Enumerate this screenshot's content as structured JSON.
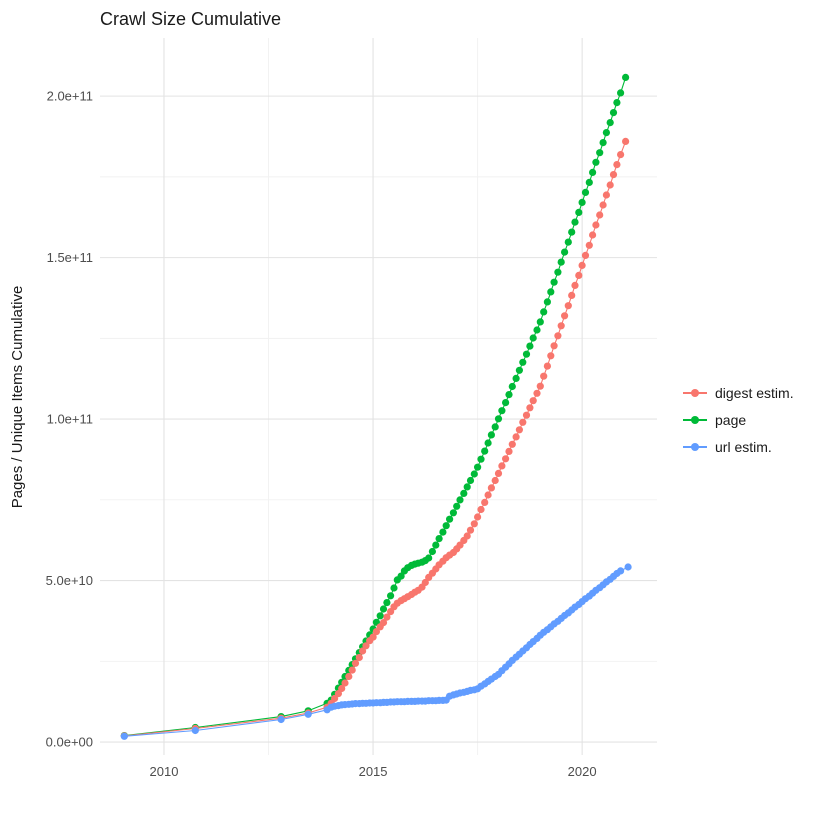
{
  "title": "Crawl Size Cumulative",
  "y_axis_title": "Pages / Unique Items Cumulative",
  "legend": {
    "items": [
      {
        "label": "digest estim.",
        "series": "digest"
      },
      {
        "label": "page",
        "series": "page"
      },
      {
        "label": "url estim.",
        "series": "url"
      }
    ]
  },
  "colors": {
    "digest": "#F8766D",
    "page": "#00BA38",
    "url": "#619CFF",
    "grid_major": "#e3e3e3",
    "grid_minor": "#f1f1f1",
    "tick_text": "#4d4d4d",
    "title_text": "#1a1a1a"
  },
  "chart_data": {
    "type": "scatter",
    "title": "Crawl Size Cumulative",
    "xlabel": "",
    "ylabel": "Pages / Unique Items Cumulative",
    "value_unit": "1e9",
    "xlim": [
      2008.47,
      2021.79
    ],
    "ylim_e9": [
      -4.0,
      218.0
    ],
    "grid": true,
    "legend_position": "right",
    "x_major_ticks": [
      {
        "value": 2010,
        "label": "2010"
      },
      {
        "value": 2015,
        "label": "2015"
      },
      {
        "value": 2020,
        "label": "2020"
      }
    ],
    "x_minor_ticks": [
      2012.5,
      2017.5
    ],
    "y_major_ticks": [
      {
        "value": 0,
        "label": "0.0e+00"
      },
      {
        "value": 50,
        "label": "5.0e+10"
      },
      {
        "value": 100,
        "label": "1.0e+11"
      },
      {
        "value": 150,
        "label": "1.5e+11"
      },
      {
        "value": 200,
        "label": "2.0e+11"
      }
    ],
    "y_minor_ticks": [
      25,
      75,
      125,
      175
    ],
    "draw_order": [
      "page",
      "digest",
      "url"
    ],
    "series": [
      {
        "id": "digest",
        "name": "digest estim.",
        "color": "#F8766D",
        "points": [
          [
            2009.05,
            1.9
          ],
          [
            2010.75,
            4.2
          ],
          [
            2012.8,
            7.4
          ],
          [
            2013.45,
            9.0
          ],
          [
            2013.9,
            10.8
          ],
          [
            2014.0,
            12.0
          ],
          [
            2014.08,
            13.5
          ],
          [
            2014.17,
            15.0
          ],
          [
            2014.25,
            16.6
          ],
          [
            2014.33,
            18.3
          ],
          [
            2014.42,
            20.3
          ],
          [
            2014.5,
            22.3
          ],
          [
            2014.58,
            24.4
          ],
          [
            2014.67,
            26.2
          ],
          [
            2014.75,
            28.2
          ],
          [
            2014.83,
            29.8
          ],
          [
            2014.92,
            31.4
          ],
          [
            2015.0,
            32.5
          ],
          [
            2015.08,
            34.2
          ],
          [
            2015.17,
            35.7
          ],
          [
            2015.25,
            37.0
          ],
          [
            2015.33,
            38.7
          ],
          [
            2015.42,
            40.4
          ],
          [
            2015.5,
            41.9
          ],
          [
            2015.58,
            43.0
          ],
          [
            2015.67,
            43.8
          ],
          [
            2015.75,
            44.4
          ],
          [
            2015.83,
            45.0
          ],
          [
            2015.92,
            45.7
          ],
          [
            2016.0,
            46.4
          ],
          [
            2016.08,
            47.0
          ],
          [
            2016.17,
            48.0
          ],
          [
            2016.25,
            49.4
          ],
          [
            2016.33,
            51.0
          ],
          [
            2016.42,
            52.3
          ],
          [
            2016.5,
            53.6
          ],
          [
            2016.58,
            54.9
          ],
          [
            2016.67,
            56.0
          ],
          [
            2016.75,
            57.1
          ],
          [
            2016.83,
            57.9
          ],
          [
            2016.92,
            58.7
          ],
          [
            2017.0,
            59.8
          ],
          [
            2017.08,
            61.0
          ],
          [
            2017.17,
            62.4
          ],
          [
            2017.25,
            63.8
          ],
          [
            2017.33,
            65.6
          ],
          [
            2017.42,
            67.6
          ],
          [
            2017.5,
            69.7
          ],
          [
            2017.58,
            72.0
          ],
          [
            2017.67,
            74.2
          ],
          [
            2017.75,
            76.5
          ],
          [
            2017.83,
            78.7
          ],
          [
            2017.92,
            81.0
          ],
          [
            2018.0,
            83.2
          ],
          [
            2018.08,
            85.5
          ],
          [
            2018.17,
            87.7
          ],
          [
            2018.25,
            90.0
          ],
          [
            2018.33,
            92.2
          ],
          [
            2018.42,
            94.5
          ],
          [
            2018.5,
            96.7
          ],
          [
            2018.58,
            99.0
          ],
          [
            2018.67,
            101.2
          ],
          [
            2018.75,
            103.5
          ],
          [
            2018.83,
            105.7
          ],
          [
            2018.92,
            108.0
          ],
          [
            2019.0,
            110.2
          ],
          [
            2019.08,
            113.3
          ],
          [
            2019.17,
            116.4
          ],
          [
            2019.25,
            119.6
          ],
          [
            2019.33,
            122.7
          ],
          [
            2019.42,
            125.8
          ],
          [
            2019.5,
            128.9
          ],
          [
            2019.58,
            132.0
          ],
          [
            2019.67,
            135.1
          ],
          [
            2019.75,
            138.3
          ],
          [
            2019.83,
            141.4
          ],
          [
            2019.92,
            144.5
          ],
          [
            2020.0,
            147.6
          ],
          [
            2020.08,
            150.7
          ],
          [
            2020.17,
            153.8
          ],
          [
            2020.25,
            157.0
          ],
          [
            2020.33,
            160.1
          ],
          [
            2020.42,
            163.2
          ],
          [
            2020.5,
            166.3
          ],
          [
            2020.58,
            169.4
          ],
          [
            2020.67,
            172.5
          ],
          [
            2020.75,
            175.7
          ],
          [
            2020.83,
            178.8
          ],
          [
            2020.92,
            181.9
          ],
          [
            2021.04,
            186.0
          ]
        ]
      },
      {
        "id": "page",
        "name": "page",
        "color": "#00BA38",
        "points": [
          [
            2009.05,
            2.0
          ],
          [
            2010.75,
            4.5
          ],
          [
            2012.8,
            7.9
          ],
          [
            2013.45,
            9.7
          ],
          [
            2013.9,
            12.0
          ],
          [
            2014.0,
            13.0
          ],
          [
            2014.08,
            14.8
          ],
          [
            2014.17,
            16.7
          ],
          [
            2014.25,
            18.5
          ],
          [
            2014.33,
            20.3
          ],
          [
            2014.42,
            22.2
          ],
          [
            2014.5,
            24.0
          ],
          [
            2014.58,
            25.8
          ],
          [
            2014.67,
            27.7
          ],
          [
            2014.75,
            29.5
          ],
          [
            2014.83,
            31.3
          ],
          [
            2014.92,
            33.2
          ],
          [
            2015.0,
            35.0
          ],
          [
            2015.08,
            37.1
          ],
          [
            2015.17,
            39.1
          ],
          [
            2015.25,
            41.2
          ],
          [
            2015.33,
            43.2
          ],
          [
            2015.42,
            45.3
          ],
          [
            2015.5,
            47.7
          ],
          [
            2015.58,
            50.2
          ],
          [
            2015.67,
            51.4
          ],
          [
            2015.75,
            53.0
          ],
          [
            2015.83,
            54.0
          ],
          [
            2015.92,
            54.7
          ],
          [
            2016.0,
            55.1
          ],
          [
            2016.08,
            55.4
          ],
          [
            2016.17,
            55.7
          ],
          [
            2016.25,
            56.2
          ],
          [
            2016.33,
            57.0
          ],
          [
            2016.42,
            59.0
          ],
          [
            2016.5,
            61.0
          ],
          [
            2016.58,
            63.0
          ],
          [
            2016.67,
            65.0
          ],
          [
            2016.75,
            67.0
          ],
          [
            2016.83,
            69.0
          ],
          [
            2016.92,
            71.0
          ],
          [
            2017.0,
            73.0
          ],
          [
            2017.08,
            75.0
          ],
          [
            2017.17,
            77.0
          ],
          [
            2017.25,
            79.0
          ],
          [
            2017.33,
            81.0
          ],
          [
            2017.42,
            83.0
          ],
          [
            2017.5,
            85.1
          ],
          [
            2017.58,
            87.6
          ],
          [
            2017.67,
            90.1
          ],
          [
            2017.75,
            92.6
          ],
          [
            2017.83,
            95.1
          ],
          [
            2017.92,
            97.6
          ],
          [
            2018.0,
            100.1
          ],
          [
            2018.08,
            102.6
          ],
          [
            2018.17,
            105.1
          ],
          [
            2018.25,
            107.6
          ],
          [
            2018.33,
            110.1
          ],
          [
            2018.42,
            112.6
          ],
          [
            2018.5,
            115.1
          ],
          [
            2018.58,
            117.6
          ],
          [
            2018.67,
            120.1
          ],
          [
            2018.75,
            122.6
          ],
          [
            2018.83,
            125.1
          ],
          [
            2018.92,
            127.6
          ],
          [
            2019.0,
            130.1
          ],
          [
            2019.08,
            133.2
          ],
          [
            2019.17,
            136.3
          ],
          [
            2019.25,
            139.4
          ],
          [
            2019.33,
            142.4
          ],
          [
            2019.42,
            145.5
          ],
          [
            2019.5,
            148.6
          ],
          [
            2019.58,
            151.7
          ],
          [
            2019.67,
            154.8
          ],
          [
            2019.75,
            157.9
          ],
          [
            2019.83,
            161.0
          ],
          [
            2019.92,
            164.0
          ],
          [
            2020.0,
            167.1
          ],
          [
            2020.08,
            170.2
          ],
          [
            2020.17,
            173.3
          ],
          [
            2020.25,
            176.4
          ],
          [
            2020.33,
            179.5
          ],
          [
            2020.42,
            182.5
          ],
          [
            2020.5,
            185.6
          ],
          [
            2020.58,
            188.7
          ],
          [
            2020.67,
            191.8
          ],
          [
            2020.75,
            194.9
          ],
          [
            2020.83,
            198.0
          ],
          [
            2020.92,
            201.0
          ],
          [
            2021.04,
            205.8
          ]
        ]
      },
      {
        "id": "url",
        "name": "url estim.",
        "color": "#619CFF",
        "points": [
          [
            2009.05,
            1.8
          ],
          [
            2010.75,
            3.6
          ],
          [
            2012.8,
            7.0
          ],
          [
            2013.45,
            8.6
          ],
          [
            2013.9,
            10.0
          ],
          [
            2014.0,
            10.8
          ],
          [
            2014.08,
            11.1
          ],
          [
            2014.17,
            11.3
          ],
          [
            2014.25,
            11.5
          ],
          [
            2014.33,
            11.6
          ],
          [
            2014.42,
            11.7
          ],
          [
            2014.5,
            11.8
          ],
          [
            2014.58,
            11.9
          ],
          [
            2014.67,
            11.9
          ],
          [
            2014.75,
            12.0
          ],
          [
            2014.83,
            12.0
          ],
          [
            2014.92,
            12.1
          ],
          [
            2015.0,
            12.1
          ],
          [
            2015.08,
            12.2
          ],
          [
            2015.17,
            12.2
          ],
          [
            2015.25,
            12.3
          ],
          [
            2015.33,
            12.3
          ],
          [
            2015.42,
            12.4
          ],
          [
            2015.5,
            12.4
          ],
          [
            2015.58,
            12.5
          ],
          [
            2015.67,
            12.5
          ],
          [
            2015.75,
            12.5
          ],
          [
            2015.83,
            12.6
          ],
          [
            2015.92,
            12.6
          ],
          [
            2016.0,
            12.6
          ],
          [
            2016.08,
            12.7
          ],
          [
            2016.17,
            12.7
          ],
          [
            2016.25,
            12.7
          ],
          [
            2016.33,
            12.8
          ],
          [
            2016.42,
            12.8
          ],
          [
            2016.5,
            12.8
          ],
          [
            2016.58,
            12.9
          ],
          [
            2016.67,
            12.9
          ],
          [
            2016.75,
            13.0
          ],
          [
            2016.83,
            14.2
          ],
          [
            2016.92,
            14.6
          ],
          [
            2017.0,
            14.9
          ],
          [
            2017.08,
            15.2
          ],
          [
            2017.17,
            15.4
          ],
          [
            2017.25,
            15.7
          ],
          [
            2017.33,
            16.0
          ],
          [
            2017.42,
            16.2
          ],
          [
            2017.5,
            16.5
          ],
          [
            2017.58,
            17.3
          ],
          [
            2017.67,
            18.0
          ],
          [
            2017.75,
            18.8
          ],
          [
            2017.83,
            19.5
          ],
          [
            2017.92,
            20.3
          ],
          [
            2018.0,
            21.0
          ],
          [
            2018.08,
            22.1
          ],
          [
            2018.17,
            23.2
          ],
          [
            2018.25,
            24.2
          ],
          [
            2018.33,
            25.3
          ],
          [
            2018.42,
            26.3
          ],
          [
            2018.5,
            27.2
          ],
          [
            2018.58,
            28.2
          ],
          [
            2018.67,
            29.2
          ],
          [
            2018.75,
            30.2
          ],
          [
            2018.83,
            31.1
          ],
          [
            2018.92,
            32.1
          ],
          [
            2019.0,
            33.1
          ],
          [
            2019.08,
            34.0
          ],
          [
            2019.17,
            34.8
          ],
          [
            2019.25,
            35.7
          ],
          [
            2019.33,
            36.6
          ],
          [
            2019.42,
            37.4
          ],
          [
            2019.5,
            38.3
          ],
          [
            2019.58,
            39.2
          ],
          [
            2019.67,
            40.0
          ],
          [
            2019.75,
            40.9
          ],
          [
            2019.83,
            41.8
          ],
          [
            2019.92,
            42.6
          ],
          [
            2020.0,
            43.5
          ],
          [
            2020.08,
            44.4
          ],
          [
            2020.17,
            45.2
          ],
          [
            2020.25,
            46.1
          ],
          [
            2020.33,
            47.0
          ],
          [
            2020.42,
            47.8
          ],
          [
            2020.5,
            48.7
          ],
          [
            2020.58,
            49.6
          ],
          [
            2020.67,
            50.4
          ],
          [
            2020.75,
            51.3
          ],
          [
            2020.83,
            52.2
          ],
          [
            2020.92,
            53.0
          ],
          [
            2021.1,
            54.2
          ]
        ]
      }
    ]
  }
}
